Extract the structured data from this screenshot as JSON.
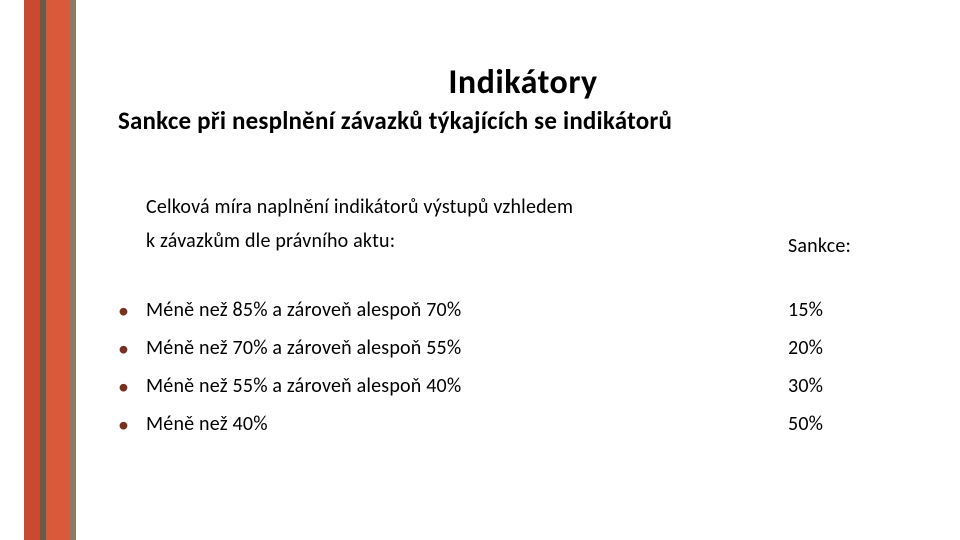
{
  "title": "Indikátory",
  "subtitle": "Sankce při nesplnění závazků týkajících se indikátorů",
  "header": {
    "label_line1": "Celková míra naplnění indikátorů výstupů vzhledem",
    "label_line2": "k závazkům dle právního aktu:",
    "value": "Sankce:"
  },
  "rows": [
    {
      "label": "Méně než 85% a zároveň alespoň 70%",
      "value": "15%"
    },
    {
      "label": "Méně než 70% a zároveň alespoň 55%",
      "value": "20%"
    },
    {
      "label": "Méně než 55% a zároveň alespoň 40%",
      "value": "30%"
    },
    {
      "label": "Méně než 40%",
      "value": "50%"
    }
  ],
  "colors": {
    "bullet": "#7a3020",
    "stripe1": "#c94a2f",
    "stripe2": "#6a5a4a",
    "stripe3": "#d85a3a",
    "stripe4": "#8a7a6a",
    "background": "#ffffff",
    "text": "#000000"
  },
  "fonts": {
    "title_size": 34,
    "subtitle_size": 25,
    "body_size": 20,
    "title_weight": 700,
    "subtitle_weight": 700
  }
}
